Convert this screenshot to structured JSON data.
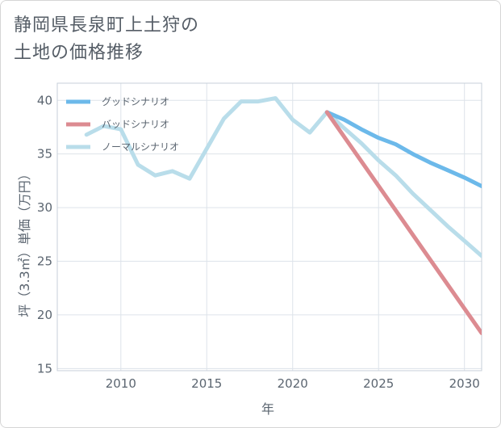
{
  "title_line1": "静岡県長泉町上土狩の",
  "title_line2": "土地の価格推移",
  "chart_data": {
    "type": "line",
    "xlabel": "年",
    "ylabel": "坪（3.3㎡）単価（万円）",
    "xlim": [
      2006.3,
      2031
    ],
    "ylim": [
      14.8,
      41.6
    ],
    "xticks": [
      2010,
      2015,
      2020,
      2025,
      2030
    ],
    "yticks": [
      15,
      20,
      25,
      30,
      35,
      40
    ],
    "grid": true,
    "legend_position": "top-left",
    "series": [
      {
        "name": "グッドシナリオ",
        "color": "#6cb9ea",
        "x": [
          2022,
          2023,
          2024,
          2025,
          2026,
          2027,
          2028,
          2029,
          2030,
          2031
        ],
        "values": [
          38.9,
          38.2,
          37.3,
          36.5,
          35.9,
          35.0,
          34.2,
          33.5,
          32.8,
          32.0
        ]
      },
      {
        "name": "バッドシナリオ",
        "color": "#dc8b91",
        "x": [
          2022,
          2031
        ],
        "values": [
          38.9,
          18.3
        ]
      },
      {
        "name": "ノーマルシナリオ",
        "color": "#b9ddea",
        "x": [
          2008,
          2009,
          2010,
          2011,
          2012,
          2013,
          2014,
          2015,
          2016,
          2017,
          2018,
          2019,
          2020,
          2021,
          2022,
          2023,
          2024,
          2025,
          2026,
          2027,
          2028,
          2029,
          2030,
          2031
        ],
        "values": [
          36.8,
          37.6,
          37.3,
          34.0,
          33.0,
          33.4,
          32.7,
          35.5,
          38.3,
          39.9,
          39.9,
          40.2,
          38.2,
          37.0,
          38.9,
          37.4,
          36.0,
          34.4,
          33.0,
          31.3,
          29.8,
          28.3,
          26.9,
          25.5
        ]
      }
    ]
  }
}
